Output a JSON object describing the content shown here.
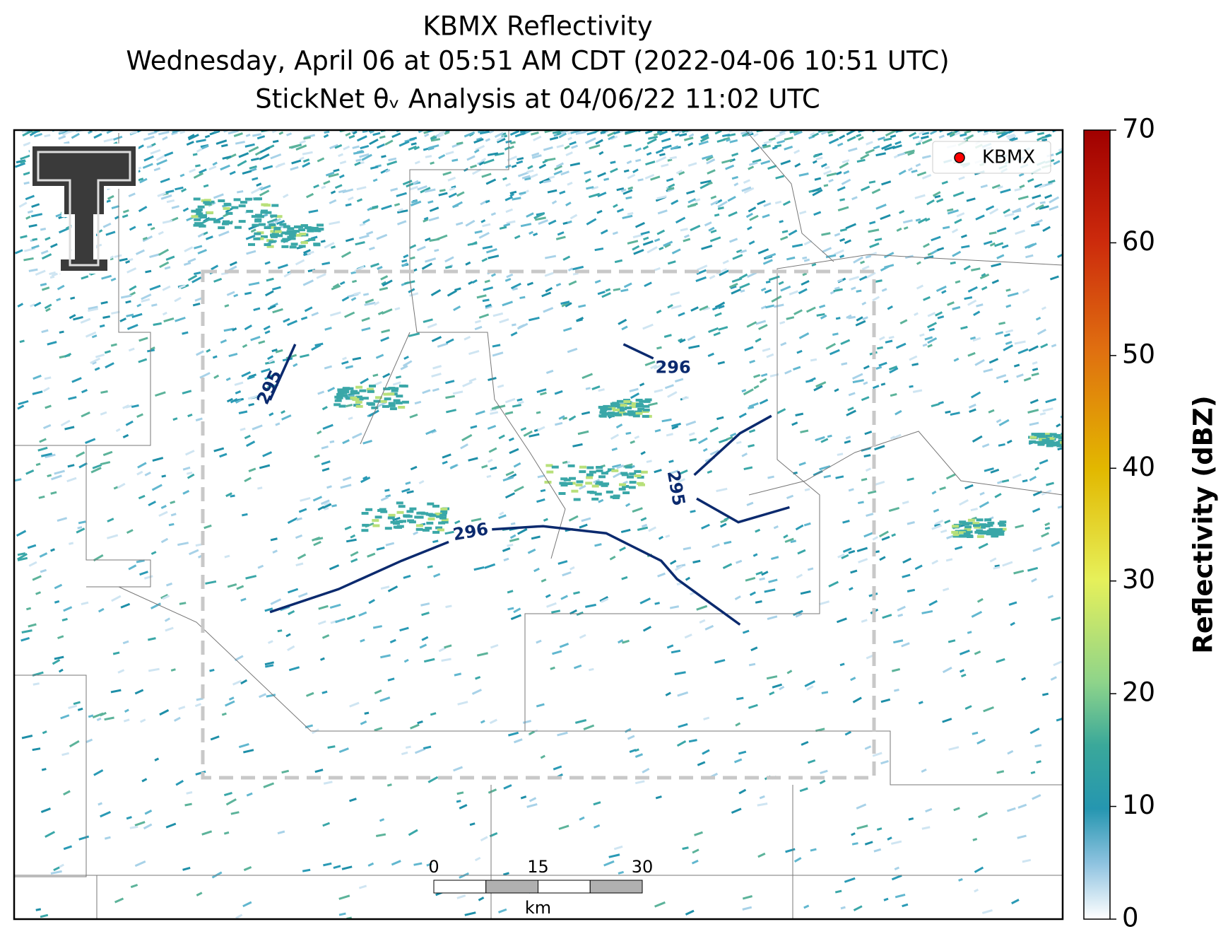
{
  "title_lines": [
    "KBMX Reflectivity",
    "Wednesday, April 06 at 05:51 AM CDT (2022-04-06 10:51 UTC)",
    "StickNet θᵥ Analysis at 04/06/22 11:02 UTC"
  ],
  "legend": {
    "label": "KBMX",
    "color": "#ff0000"
  },
  "contours": [
    {
      "level": 295
    },
    {
      "level": 296
    },
    {
      "level": 295
    },
    {
      "level": 296
    }
  ],
  "contour_color": "#0b2a6e",
  "scalebar": {
    "ticks": [
      0,
      15,
      30
    ],
    "unit": "km"
  },
  "colorbar": {
    "label": "Reflectivity (dBZ)",
    "lim": [
      0,
      70
    ],
    "ticks": [
      0,
      10,
      20,
      30,
      40,
      50,
      60,
      70
    ]
  }
}
